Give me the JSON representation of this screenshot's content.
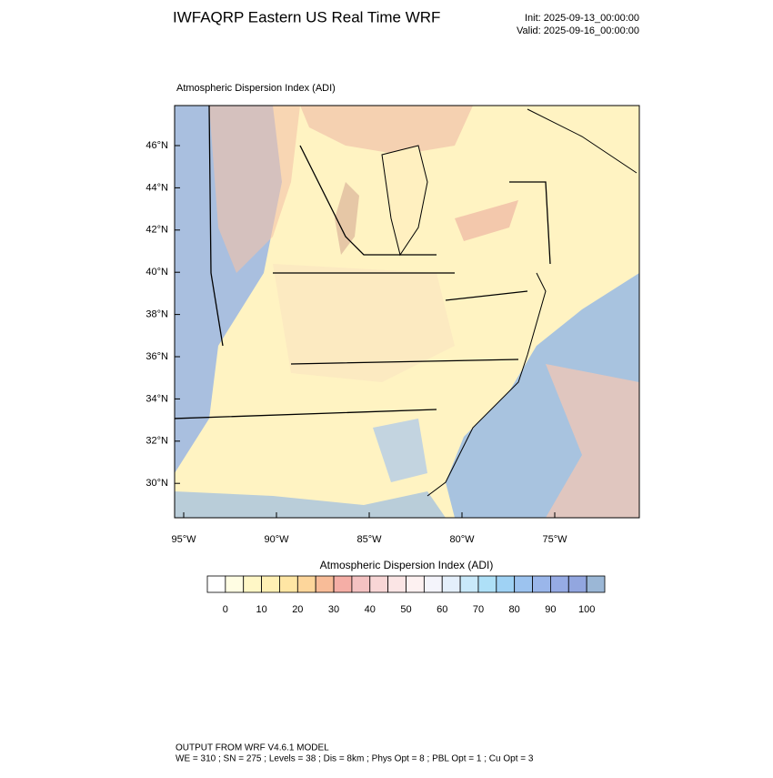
{
  "header": {
    "title": "IWFAQRP Eastern US Real Time WRF",
    "init": "Init: 2025-09-13_00:00:00",
    "valid": "Valid: 2025-09-16_00:00:00"
  },
  "map": {
    "title": "Atmospheric Dispersion Index   (ADI)",
    "lat_labels": [
      "46°N",
      "44°N",
      "42°N",
      "40°N",
      "38°N",
      "36°N",
      "34°N",
      "32°N",
      "30°N"
    ],
    "lon_labels": [
      "95°W",
      "90°W",
      "85°W",
      "80°W",
      "75°W"
    ]
  },
  "colorbar": {
    "title": "Atmospheric Dispersion Index  (ADI)",
    "tick_labels": [
      "0",
      "10",
      "20",
      "30",
      "40",
      "50",
      "60",
      "70",
      "80",
      "90",
      "100"
    ],
    "colors": [
      "#ffffff",
      "#fffde3",
      "#fff7c6",
      "#fff0b4",
      "#ffe6a4",
      "#fdd69b",
      "#f8bc98",
      "#f5aea6",
      "#f4c2c2",
      "#f8d6d6",
      "#fbe5e5",
      "#fdf1f1",
      "#f4f4fb",
      "#e4effb",
      "#c9e9fa",
      "#aee0f7",
      "#9fd2f4",
      "#9cc3ef",
      "#9ab6ea",
      "#96abe4",
      "#92a6df",
      "#9bb7d6"
    ]
  },
  "footer": {
    "line1": "OUTPUT FROM WRF V4.6.1 MODEL",
    "line2": "WE = 310 ; SN = 275 ; Levels = 38 ; Dis = 8km ; Phys Opt = 8 ; PBL Opt = 1 ; Cu Opt = 3"
  }
}
